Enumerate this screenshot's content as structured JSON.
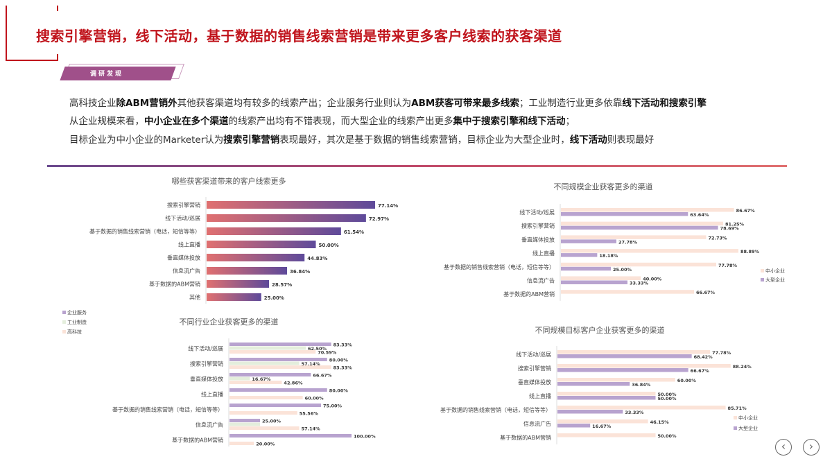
{
  "header": {
    "title": "搜索引擎营销，线下活动，基于数据的销售线索营销是带来更多客户线索的获客渠道",
    "tag": "调研发现"
  },
  "findings": [
    [
      {
        "t": "高科技企业"
      },
      {
        "t": "除ABM营销外",
        "b": true
      },
      {
        "t": "其他获客渠道均有较多的线索产出；企业服务行业则认为"
      },
      {
        "t": "ABM获客可带来最多线索",
        "b": true
      },
      {
        "t": "；工业制造行业更多依靠"
      },
      {
        "t": "线下活动和搜索引擎",
        "b": true
      }
    ],
    [
      {
        "t": "从企业规模来看，"
      },
      {
        "t": "中小企业在多个渠道",
        "b": true
      },
      {
        "t": "的线索产出均有不错表现，而大型企业的线索产出更多"
      },
      {
        "t": "集中于搜索引擎和线下活动",
        "b": true
      },
      {
        "t": "；"
      }
    ],
    [
      {
        "t": "目标企业为中小企业的Marketer认为"
      },
      {
        "t": "搜索引擎营销",
        "b": true
      },
      {
        "t": "表现最好，其次是基于数据的销售线索营销，目标企业为大型企业时，"
      },
      {
        "t": "线下活动",
        "b": true
      },
      {
        "t": "则表现最好"
      }
    ]
  ],
  "nav": {
    "prev_icon": "chevron-left-icon",
    "next_icon": "chevron-right-icon",
    "prev": "‹",
    "next": "›"
  },
  "chart_data": [
    {
      "type": "bar",
      "orientation": "horizontal",
      "title": "哪些获客渠道带来的客户线索更多",
      "categories": [
        "搜索引擎营销",
        "线下活动/巡展",
        "基于数据的销售线索营销（电话，短信等等）",
        "线上直播",
        "垂直媒体投放",
        "信息流广告",
        "基于数据的ABM营销",
        "其他"
      ],
      "series": [
        {
          "values": [
            77.14,
            72.97,
            61.54,
            50.0,
            44.83,
            36.84,
            28.57,
            25.0
          ],
          "labels": [
            "77.14%",
            "72.97%",
            "61.54%",
            "50.00%",
            "44.83%",
            "36.84%",
            "28.57%",
            "25.00%"
          ],
          "color_start": "#e07070",
          "color_end": "#5e4a9a"
        }
      ]
    },
    {
      "type": "bar",
      "orientation": "horizontal",
      "title": "不同规模企业获客更多的渠道",
      "categories": [
        "线下活动/巡展",
        "搜索引擎营销",
        "垂直媒体投放",
        "线上直播",
        "基于数据的销售线索营销（电话，短信等等）",
        "信息流广告",
        "基于数据的ABM营销"
      ],
      "legend_position": "right",
      "series": [
        {
          "name": "中小企业",
          "color": "#fbe3d8",
          "values": [
            86.67,
            81.25,
            72.73,
            88.89,
            77.78,
            40.0,
            66.67
          ],
          "labels": [
            "86.67%",
            "81.25%",
            "72.73%",
            "88.89%",
            "77.78%",
            "40.00%",
            "66.67%"
          ]
        },
        {
          "name": "大型企业",
          "color": "#b8a3cf",
          "values": [
            63.64,
            78.69,
            27.78,
            18.18,
            25.0,
            33.33,
            null
          ],
          "labels": [
            "63.64%",
            "78.69%",
            "27.78%",
            "18.18%",
            "25.00%",
            "33.33%",
            ""
          ]
        }
      ]
    },
    {
      "type": "bar",
      "orientation": "horizontal",
      "title": "不同行业企业获客更多的渠道",
      "categories": [
        "线下活动/巡展",
        "搜索引擎营销",
        "垂直媒体投放",
        "线上直播",
        "基于数据的销售线索营销（电话，短信等等）",
        "信息流广告",
        "基于数据的ABM营销"
      ],
      "legend_position": "top-left",
      "series": [
        {
          "name": "企业服务",
          "color": "#b8a3cf",
          "values": [
            83.33,
            80.0,
            66.67,
            80.0,
            75.0,
            25.0,
            100.0
          ],
          "labels": [
            "83.33%",
            "80.00%",
            "66.67%",
            "80.00%",
            "75.00%",
            "25.00%",
            "100.00%"
          ]
        },
        {
          "name": "工业制造",
          "color": "#e4eedc",
          "values": [
            62.5,
            57.14,
            16.67,
            null,
            null,
            25.0,
            null
          ],
          "labels": [
            "62.50%",
            "57.14%",
            "16.67%",
            "",
            "",
            "",
            ""
          ]
        },
        {
          "name": "高科技",
          "color": "#fbe3d8",
          "values": [
            70.59,
            83.33,
            42.86,
            60.0,
            55.56,
            57.14,
            20.0
          ],
          "labels": [
            "70.59%",
            "83.33%",
            "42.86%",
            "60.00%",
            "55.56%",
            "57.14%",
            "20.00%"
          ]
        }
      ]
    },
    {
      "type": "bar",
      "orientation": "horizontal",
      "title": "不同规模目标客户企业获客更多的渠道",
      "categories": [
        "线下活动/巡展",
        "搜索引擎营销",
        "垂直媒体投放",
        "线上直播",
        "基于数据的销售线索营销（电话，短信等等）",
        "信息流广告",
        "基于数据的ABM营销"
      ],
      "legend_position": "bottom-right",
      "series": [
        {
          "name": "中小企业",
          "color": "#fbe3d8",
          "values": [
            77.78,
            88.24,
            60.0,
            50.0,
            85.71,
            46.15,
            50.0
          ],
          "labels": [
            "77.78%",
            "88.24%",
            "60.00%",
            "50.00%",
            "85.71%",
            "46.15%",
            "50.00%"
          ]
        },
        {
          "name": "大型企业",
          "color": "#b8a3cf",
          "values": [
            68.42,
            66.67,
            36.84,
            50.0,
            33.33,
            16.67,
            null
          ],
          "labels": [
            "68.42%",
            "66.67%",
            "36.84%",
            "50.00%",
            "33.33%",
            "16.67%",
            ""
          ]
        }
      ]
    }
  ]
}
